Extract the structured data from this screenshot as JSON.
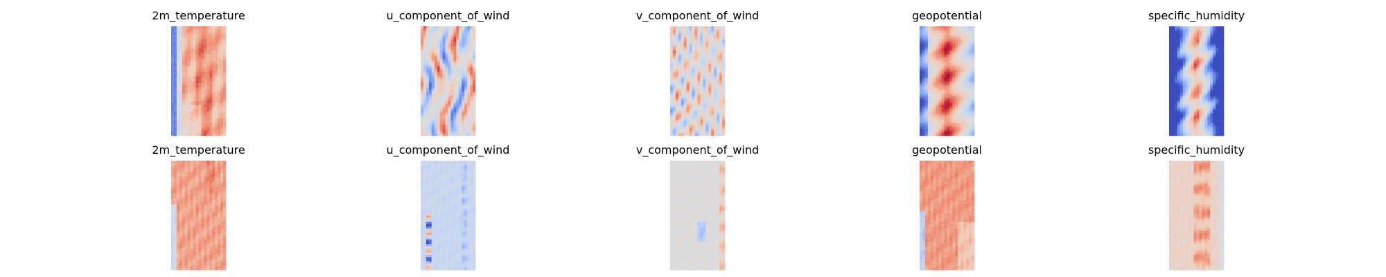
{
  "figure": {
    "rows": 2,
    "cols": 5,
    "colormap": "coolwarm",
    "colormap_stops": [
      "#3b4cc0",
      "#7b9ff9",
      "#c0d4f5",
      "#dddcdc",
      "#f2cbb7",
      "#ee8468",
      "#b40426"
    ],
    "axes_visible": false
  },
  "chart_data": [
    {
      "type": "heatmap",
      "title": "2m_temperature",
      "pattern": "t2m"
    },
    {
      "type": "heatmap",
      "title": "u_component_of_wind",
      "pattern": "uwind"
    },
    {
      "type": "heatmap",
      "title": "v_component_of_wind",
      "pattern": "vwind"
    },
    {
      "type": "heatmap",
      "title": "geopotential",
      "pattern": "geo"
    },
    {
      "type": "heatmap",
      "title": "specific_humidity",
      "pattern": "q"
    },
    {
      "type": "heatmap",
      "title": "2m_temperature",
      "pattern": "t2m_err"
    },
    {
      "type": "heatmap",
      "title": "u_component_of_wind",
      "pattern": "uwind_err"
    },
    {
      "type": "heatmap",
      "title": "v_component_of_wind",
      "pattern": "vwind_err"
    },
    {
      "type": "heatmap",
      "title": "geopotential",
      "pattern": "geo_err"
    },
    {
      "type": "heatmap",
      "title": "specific_humidity",
      "pattern": "q_err"
    }
  ]
}
